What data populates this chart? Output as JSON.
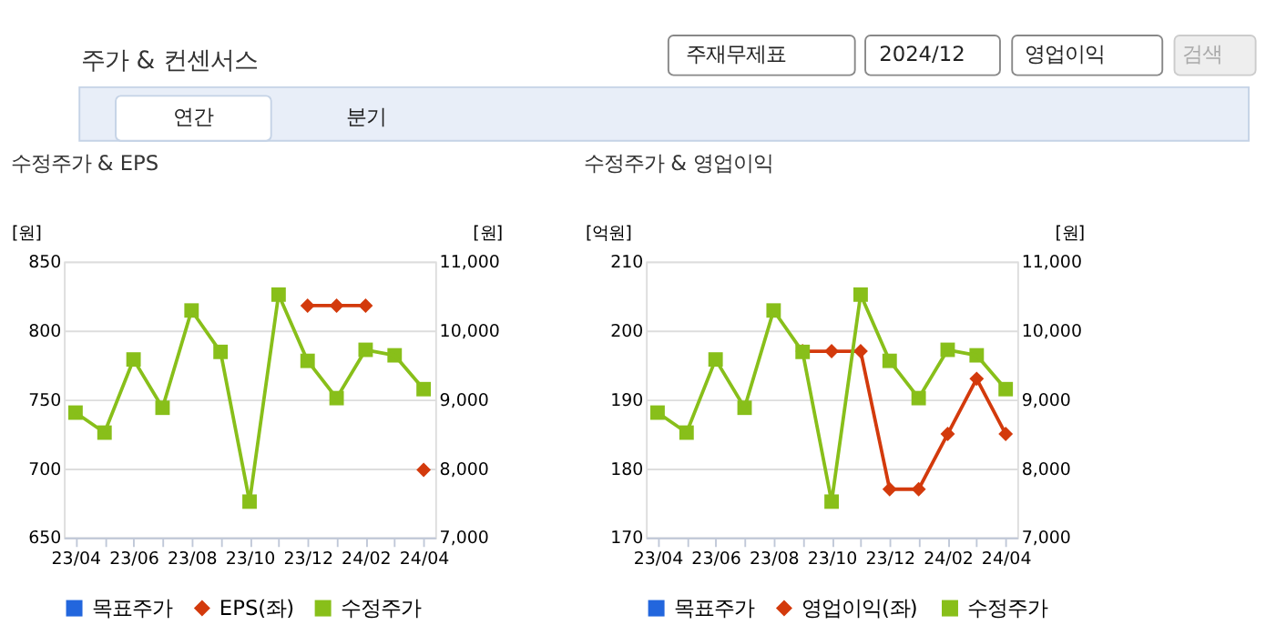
{
  "chart_data": [
    {
      "type": "line",
      "title": "수정주가 & EPS",
      "annotations": [
        "주가 & 컨센서스",
        "주재무제표",
        "2024/12",
        "영업이익",
        "검색",
        "연간",
        "분기"
      ],
      "categories": [
        "23/04",
        null,
        "23/06",
        null,
        "23/08",
        null,
        "23/10",
        null,
        "23/12",
        null,
        "24/02",
        null,
        "24/04"
      ],
      "ylabel": "[원]",
      "y2label": "[원]",
      "ylim": [
        650,
        850
      ],
      "yticks": [
        650,
        700,
        750,
        800,
        850
      ],
      "y2lim": [
        7000,
        11000
      ],
      "y2ticks": [
        {
          "value": 7000,
          "label": "7,000"
        },
        {
          "value": 8000,
          "label": "8,000"
        },
        {
          "value": 9000,
          "label": "9,000"
        },
        {
          "value": 10000,
          "label": "10,000"
        },
        {
          "value": 11000,
          "label": "11,000"
        }
      ],
      "grid": "y",
      "legend": "bottom",
      "series": [
        {
          "name": "목표주가",
          "color": "#2266dd",
          "marker": "square",
          "axis": "y",
          "values": [
            null,
            null,
            null,
            null,
            null,
            null,
            null,
            null,
            null,
            null,
            null,
            null,
            null
          ]
        },
        {
          "name": "EPS(좌)",
          "color": "#d33a0c",
          "marker": "diamond",
          "axis": "y",
          "values": [
            null,
            null,
            null,
            null,
            null,
            null,
            null,
            null,
            818,
            818,
            818,
            null,
            699
          ]
        },
        {
          "name": "수정주가",
          "color": "#88bf1a",
          "marker": "square",
          "axis": "y2",
          "values": [
            8810,
            8520,
            9580,
            8880,
            10290,
            9690,
            7520,
            10520,
            9560,
            9020,
            9720,
            9640,
            9150
          ]
        }
      ]
    },
    {
      "type": "line",
      "title": "수정주가 & 영업이익",
      "categories": [
        "23/04",
        null,
        "23/06",
        null,
        "23/08",
        null,
        "23/10",
        null,
        "23/12",
        null,
        "24/02",
        null,
        "24/04"
      ],
      "ylabel": "[억원]",
      "y2label": "[원]",
      "ylim": [
        170,
        210
      ],
      "yticks": [
        170,
        180,
        190,
        200,
        210
      ],
      "y2lim": [
        7000,
        11000
      ],
      "y2ticks": [
        {
          "value": 7000,
          "label": "7,000"
        },
        {
          "value": 8000,
          "label": "8,000"
        },
        {
          "value": 9000,
          "label": "9,000"
        },
        {
          "value": 10000,
          "label": "10,000"
        },
        {
          "value": 11000,
          "label": "11,000"
        }
      ],
      "grid": "y",
      "legend": "bottom",
      "series": [
        {
          "name": "목표주가",
          "color": "#2266dd",
          "marker": "square",
          "axis": "y",
          "values": [
            null,
            null,
            null,
            null,
            null,
            null,
            null,
            null,
            null,
            null,
            null,
            null,
            null
          ]
        },
        {
          "name": "영업이익(좌)",
          "color": "#d33a0c",
          "marker": "diamond",
          "axis": "y",
          "values": [
            null,
            null,
            null,
            null,
            null,
            197,
            197,
            197,
            177,
            177,
            185,
            193,
            185
          ]
        },
        {
          "name": "수정주가",
          "color": "#88bf1a",
          "marker": "square",
          "axis": "y2",
          "values": [
            8810,
            8520,
            9580,
            8880,
            10290,
            9690,
            7520,
            10520,
            9560,
            9020,
            9720,
            9640,
            9150
          ]
        }
      ]
    }
  ]
}
